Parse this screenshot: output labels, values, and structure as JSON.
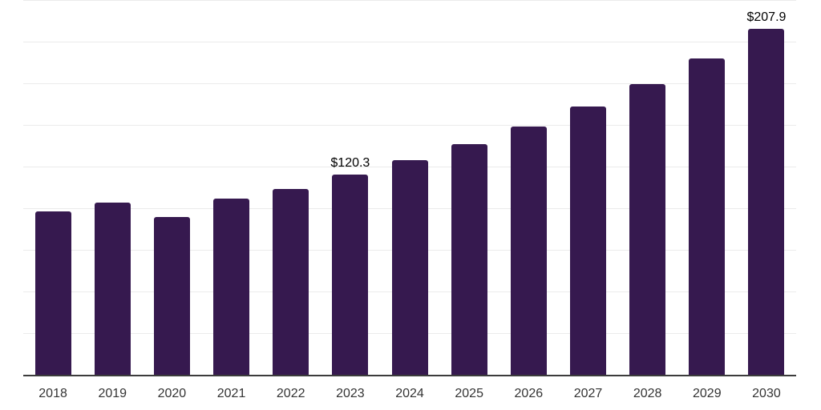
{
  "chart_data": {
    "type": "bar",
    "title": "",
    "xlabel": "",
    "ylabel": "",
    "categories": [
      "2018",
      "2019",
      "2020",
      "2021",
      "2022",
      "2023",
      "2024",
      "2025",
      "2026",
      "2027",
      "2028",
      "2029",
      "2030"
    ],
    "values": [
      98.0,
      103.2,
      94.5,
      106.0,
      111.5,
      120.3,
      128.7,
      138.5,
      149.2,
      161.1,
      174.7,
      190.1,
      207.9
    ],
    "value_labels": {
      "2023": "$120.3",
      "2030": "$207.9"
    },
    "ylim": [
      0,
      225
    ],
    "gridline_step": 25,
    "grid": "horizontal-only",
    "y_axis_labels_visible": false,
    "legend": "none",
    "colors": {
      "bar": "#36194f",
      "gridline": "#ebebeb",
      "axis_line": "#3c3c3c",
      "tick_text": "#333333",
      "value_label_text": "#000000",
      "background": "#ffffff"
    }
  }
}
